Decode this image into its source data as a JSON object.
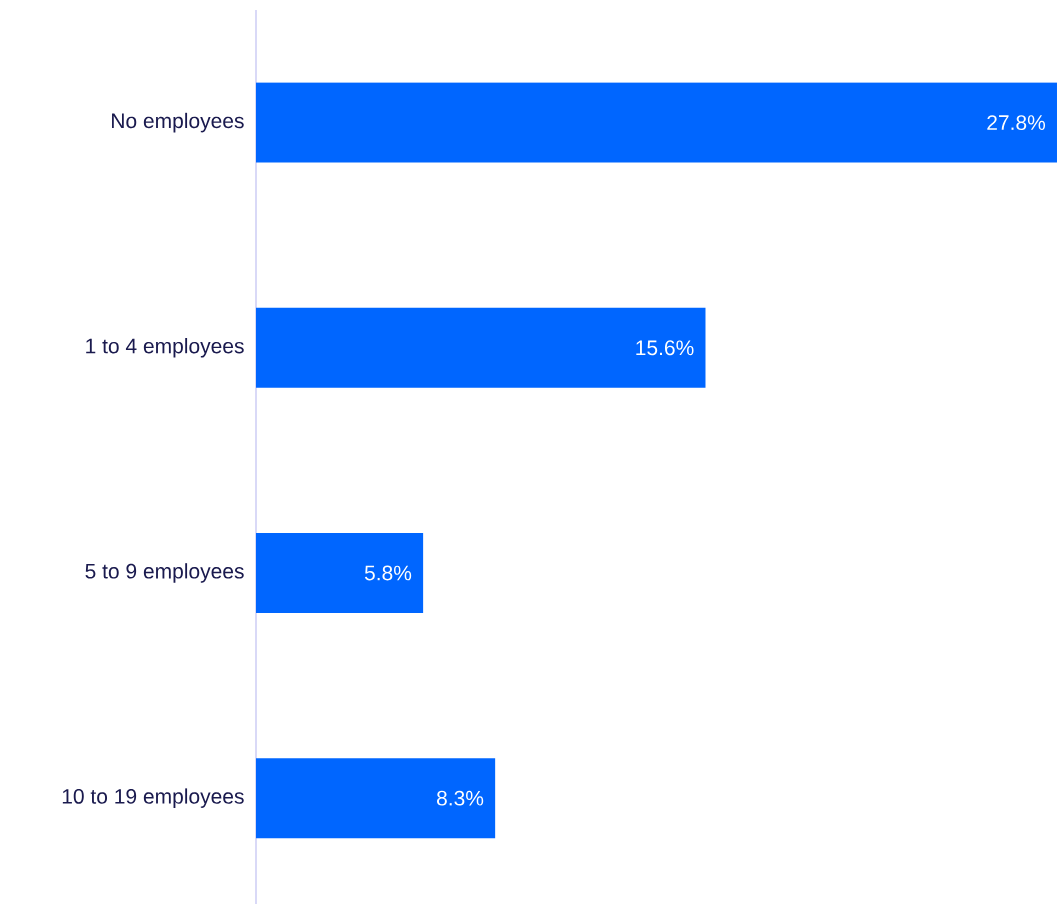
{
  "chart_data": {
    "type": "bar",
    "orientation": "horizontal",
    "categories": [
      "No employees",
      "1 to 4 employees",
      "5 to 9 employees",
      "10 to 19 employees"
    ],
    "values": [
      27.8,
      15.6,
      5.8,
      8.3
    ],
    "value_labels": [
      "27.8%",
      "15.6%",
      "5.8%",
      "8.3%"
    ],
    "color": "#0066ff"
  }
}
